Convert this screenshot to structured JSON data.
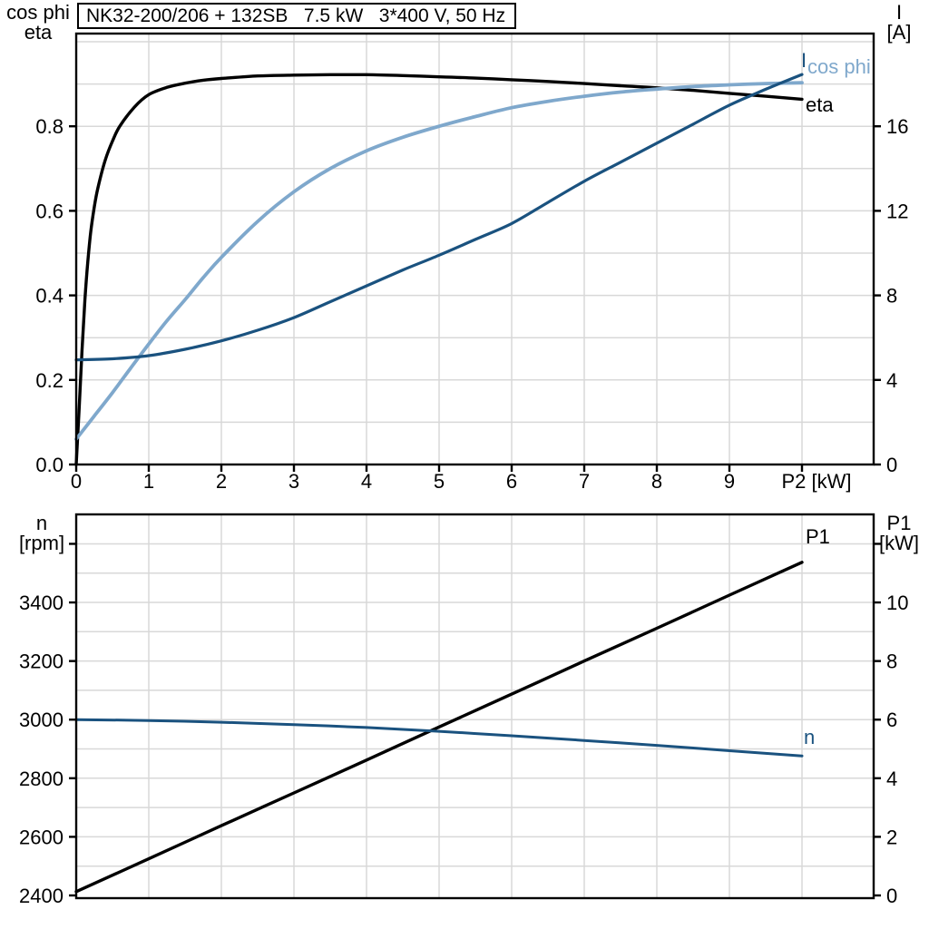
{
  "title": "NK32-200/206 + 132SB   7.5 kW   3*400 V, 50 Hz",
  "colors": {
    "black": "#000000",
    "dark_blue": "#1A527F",
    "light_blue": "#7FA8CC",
    "grid": "#D8D8D8",
    "frame": "#000000"
  },
  "chart_data": [
    {
      "type": "line",
      "title": "NK32-200/206 + 132SB   7.5 kW   3*400 V, 50 Hz",
      "x_axis": {
        "label": "P2 [kW]",
        "range": [
          0,
          10.99
        ],
        "grid_step": 1,
        "ticks": [
          {
            "v": 0,
            "label": "0"
          },
          {
            "v": 1,
            "label": "1"
          },
          {
            "v": 2,
            "label": "2"
          },
          {
            "v": 3,
            "label": "3"
          },
          {
            "v": 4,
            "label": "4"
          },
          {
            "v": 5,
            "label": "5"
          },
          {
            "v": 6,
            "label": "6"
          },
          {
            "v": 7,
            "label": "7"
          },
          {
            "v": 8,
            "label": "8"
          },
          {
            "v": 9,
            "label": "9"
          },
          {
            "v": 10,
            "label": "P2 [kW]"
          }
        ]
      },
      "left_axis": {
        "title_lines": [
          "cos phi",
          "eta"
        ],
        "range": [
          0,
          1.019
        ],
        "grid_step": 0.1,
        "ticks": [
          {
            "v": 0,
            "label": "0.0"
          },
          {
            "v": 0.2,
            "label": "0.2"
          },
          {
            "v": 0.4,
            "label": "0.4"
          },
          {
            "v": 0.6,
            "label": "0.6"
          },
          {
            "v": 0.8,
            "label": "0.8"
          }
        ]
      },
      "right_axis": {
        "title_lines": [
          "I",
          "[A]"
        ],
        "range": [
          0,
          20.39
        ],
        "ticks": [
          {
            "v": 0,
            "label": "0"
          },
          {
            "v": 4,
            "label": "4"
          },
          {
            "v": 8,
            "label": "8"
          },
          {
            "v": 12,
            "label": "12"
          },
          {
            "v": 16,
            "label": "16"
          }
        ]
      },
      "series": [
        {
          "name": "eta",
          "label": "eta",
          "axis": "left",
          "color_key": "black",
          "points": [
            [
              0,
              0
            ],
            [
              0.04,
              0.13
            ],
            [
              0.08,
              0.27
            ],
            [
              0.12,
              0.39
            ],
            [
              0.16,
              0.48
            ],
            [
              0.2,
              0.55
            ],
            [
              0.25,
              0.61
            ],
            [
              0.3,
              0.655
            ],
            [
              0.4,
              0.72
            ],
            [
              0.5,
              0.765
            ],
            [
              0.6,
              0.8
            ],
            [
              0.8,
              0.845
            ],
            [
              1,
              0.875
            ],
            [
              1.25,
              0.892
            ],
            [
              1.5,
              0.902
            ],
            [
              1.75,
              0.909
            ],
            [
              2,
              0.913
            ],
            [
              2.5,
              0.919
            ],
            [
              3,
              0.921
            ],
            [
              3.5,
              0.922
            ],
            [
              4,
              0.922
            ],
            [
              4.5,
              0.92
            ],
            [
              5,
              0.917
            ],
            [
              5.5,
              0.914
            ],
            [
              6,
              0.91
            ],
            [
              6.5,
              0.906
            ],
            [
              7,
              0.901
            ],
            [
              7.5,
              0.896
            ],
            [
              8,
              0.891
            ],
            [
              8.5,
              0.885
            ],
            [
              9,
              0.878
            ],
            [
              9.5,
              0.871
            ],
            [
              10,
              0.864
            ]
          ]
        },
        {
          "name": "cos_phi",
          "label": "cos phi",
          "axis": "left",
          "color_key": "light_blue",
          "points": [
            [
              0,
              0.06
            ],
            [
              0.25,
              0.115
            ],
            [
              0.5,
              0.17
            ],
            [
              0.75,
              0.228
            ],
            [
              1,
              0.285
            ],
            [
              1.25,
              0.34
            ],
            [
              1.5,
              0.39
            ],
            [
              1.75,
              0.442
            ],
            [
              2,
              0.49
            ],
            [
              2.5,
              0.575
            ],
            [
              3,
              0.645
            ],
            [
              3.5,
              0.7
            ],
            [
              4,
              0.742
            ],
            [
              4.5,
              0.774
            ],
            [
              5,
              0.8
            ],
            [
              5.5,
              0.823
            ],
            [
              6,
              0.844
            ],
            [
              6.5,
              0.859
            ],
            [
              7,
              0.871
            ],
            [
              7.5,
              0.881
            ],
            [
              8,
              0.888
            ],
            [
              8.5,
              0.894
            ],
            [
              9,
              0.898
            ],
            [
              9.5,
              0.901
            ],
            [
              10,
              0.903
            ]
          ]
        },
        {
          "name": "I",
          "label": "I",
          "axis": "right",
          "color_key": "dark_blue",
          "points": [
            [
              0,
              4.95
            ],
            [
              0.5,
              5.0
            ],
            [
              1,
              5.15
            ],
            [
              1.5,
              5.45
            ],
            [
              2,
              5.85
            ],
            [
              2.5,
              6.35
            ],
            [
              3,
              6.95
            ],
            [
              3.5,
              7.7
            ],
            [
              4,
              8.45
            ],
            [
              4.5,
              9.2
            ],
            [
              5,
              9.9
            ],
            [
              5.5,
              10.65
            ],
            [
              6,
              11.4
            ],
            [
              6.5,
              12.4
            ],
            [
              7,
              13.4
            ],
            [
              7.5,
              14.3
            ],
            [
              8,
              15.2
            ],
            [
              8.5,
              16.1
            ],
            [
              9,
              17.0
            ],
            [
              9.5,
              17.75
            ],
            [
              10,
              18.45
            ]
          ]
        }
      ]
    },
    {
      "type": "line",
      "title": "",
      "x_axis": {
        "label": "",
        "range": [
          0,
          10.99
        ],
        "grid_step": 1,
        "ticks": []
      },
      "left_axis": {
        "title_lines": [
          "n",
          "[rpm]"
        ],
        "range": [
          2391,
          3700
        ],
        "grid_step": 100,
        "ticks": [
          {
            "v": 2400,
            "label": "2400"
          },
          {
            "v": 2600,
            "label": "2600"
          },
          {
            "v": 2800,
            "label": "2800"
          },
          {
            "v": 3000,
            "label": "3000"
          },
          {
            "v": 3200,
            "label": "3200"
          },
          {
            "v": 3400,
            "label": "3400"
          },
          {
            "v": 3600,
            "label": ""
          }
        ]
      },
      "right_axis": {
        "title_lines": [
          "P1",
          "[kW]"
        ],
        "range": [
          0,
          13
        ],
        "ticks": [
          {
            "v": 0,
            "label": "0"
          },
          {
            "v": 2,
            "label": "2"
          },
          {
            "v": 4,
            "label": "4"
          },
          {
            "v": 6,
            "label": "6"
          },
          {
            "v": 8,
            "label": "8"
          },
          {
            "v": 10,
            "label": "10"
          },
          {
            "v": 12,
            "label": ""
          }
        ]
      },
      "series": [
        {
          "name": "P1",
          "label": "P1",
          "axis": "right",
          "color_key": "black",
          "points": [
            [
              0,
              0.13
            ],
            [
              1,
              1.25
            ],
            [
              2,
              2.38
            ],
            [
              3,
              3.5
            ],
            [
              4,
              4.62
            ],
            [
              5,
              5.75
            ],
            [
              6,
              6.87
            ],
            [
              7,
              8.0
            ],
            [
              8,
              9.12
            ],
            [
              9,
              10.25
            ],
            [
              10,
              11.37
            ]
          ]
        },
        {
          "name": "n",
          "label": "n",
          "axis": "left",
          "color_key": "dark_blue",
          "points": [
            [
              0,
              3000
            ],
            [
              1,
              2997
            ],
            [
              2,
              2991
            ],
            [
              3,
              2983
            ],
            [
              4,
              2973
            ],
            [
              5,
              2960
            ],
            [
              6,
              2945
            ],
            [
              7,
              2929
            ],
            [
              8,
              2912
            ],
            [
              9,
              2894
            ],
            [
              10,
              2876
            ]
          ]
        }
      ]
    }
  ]
}
